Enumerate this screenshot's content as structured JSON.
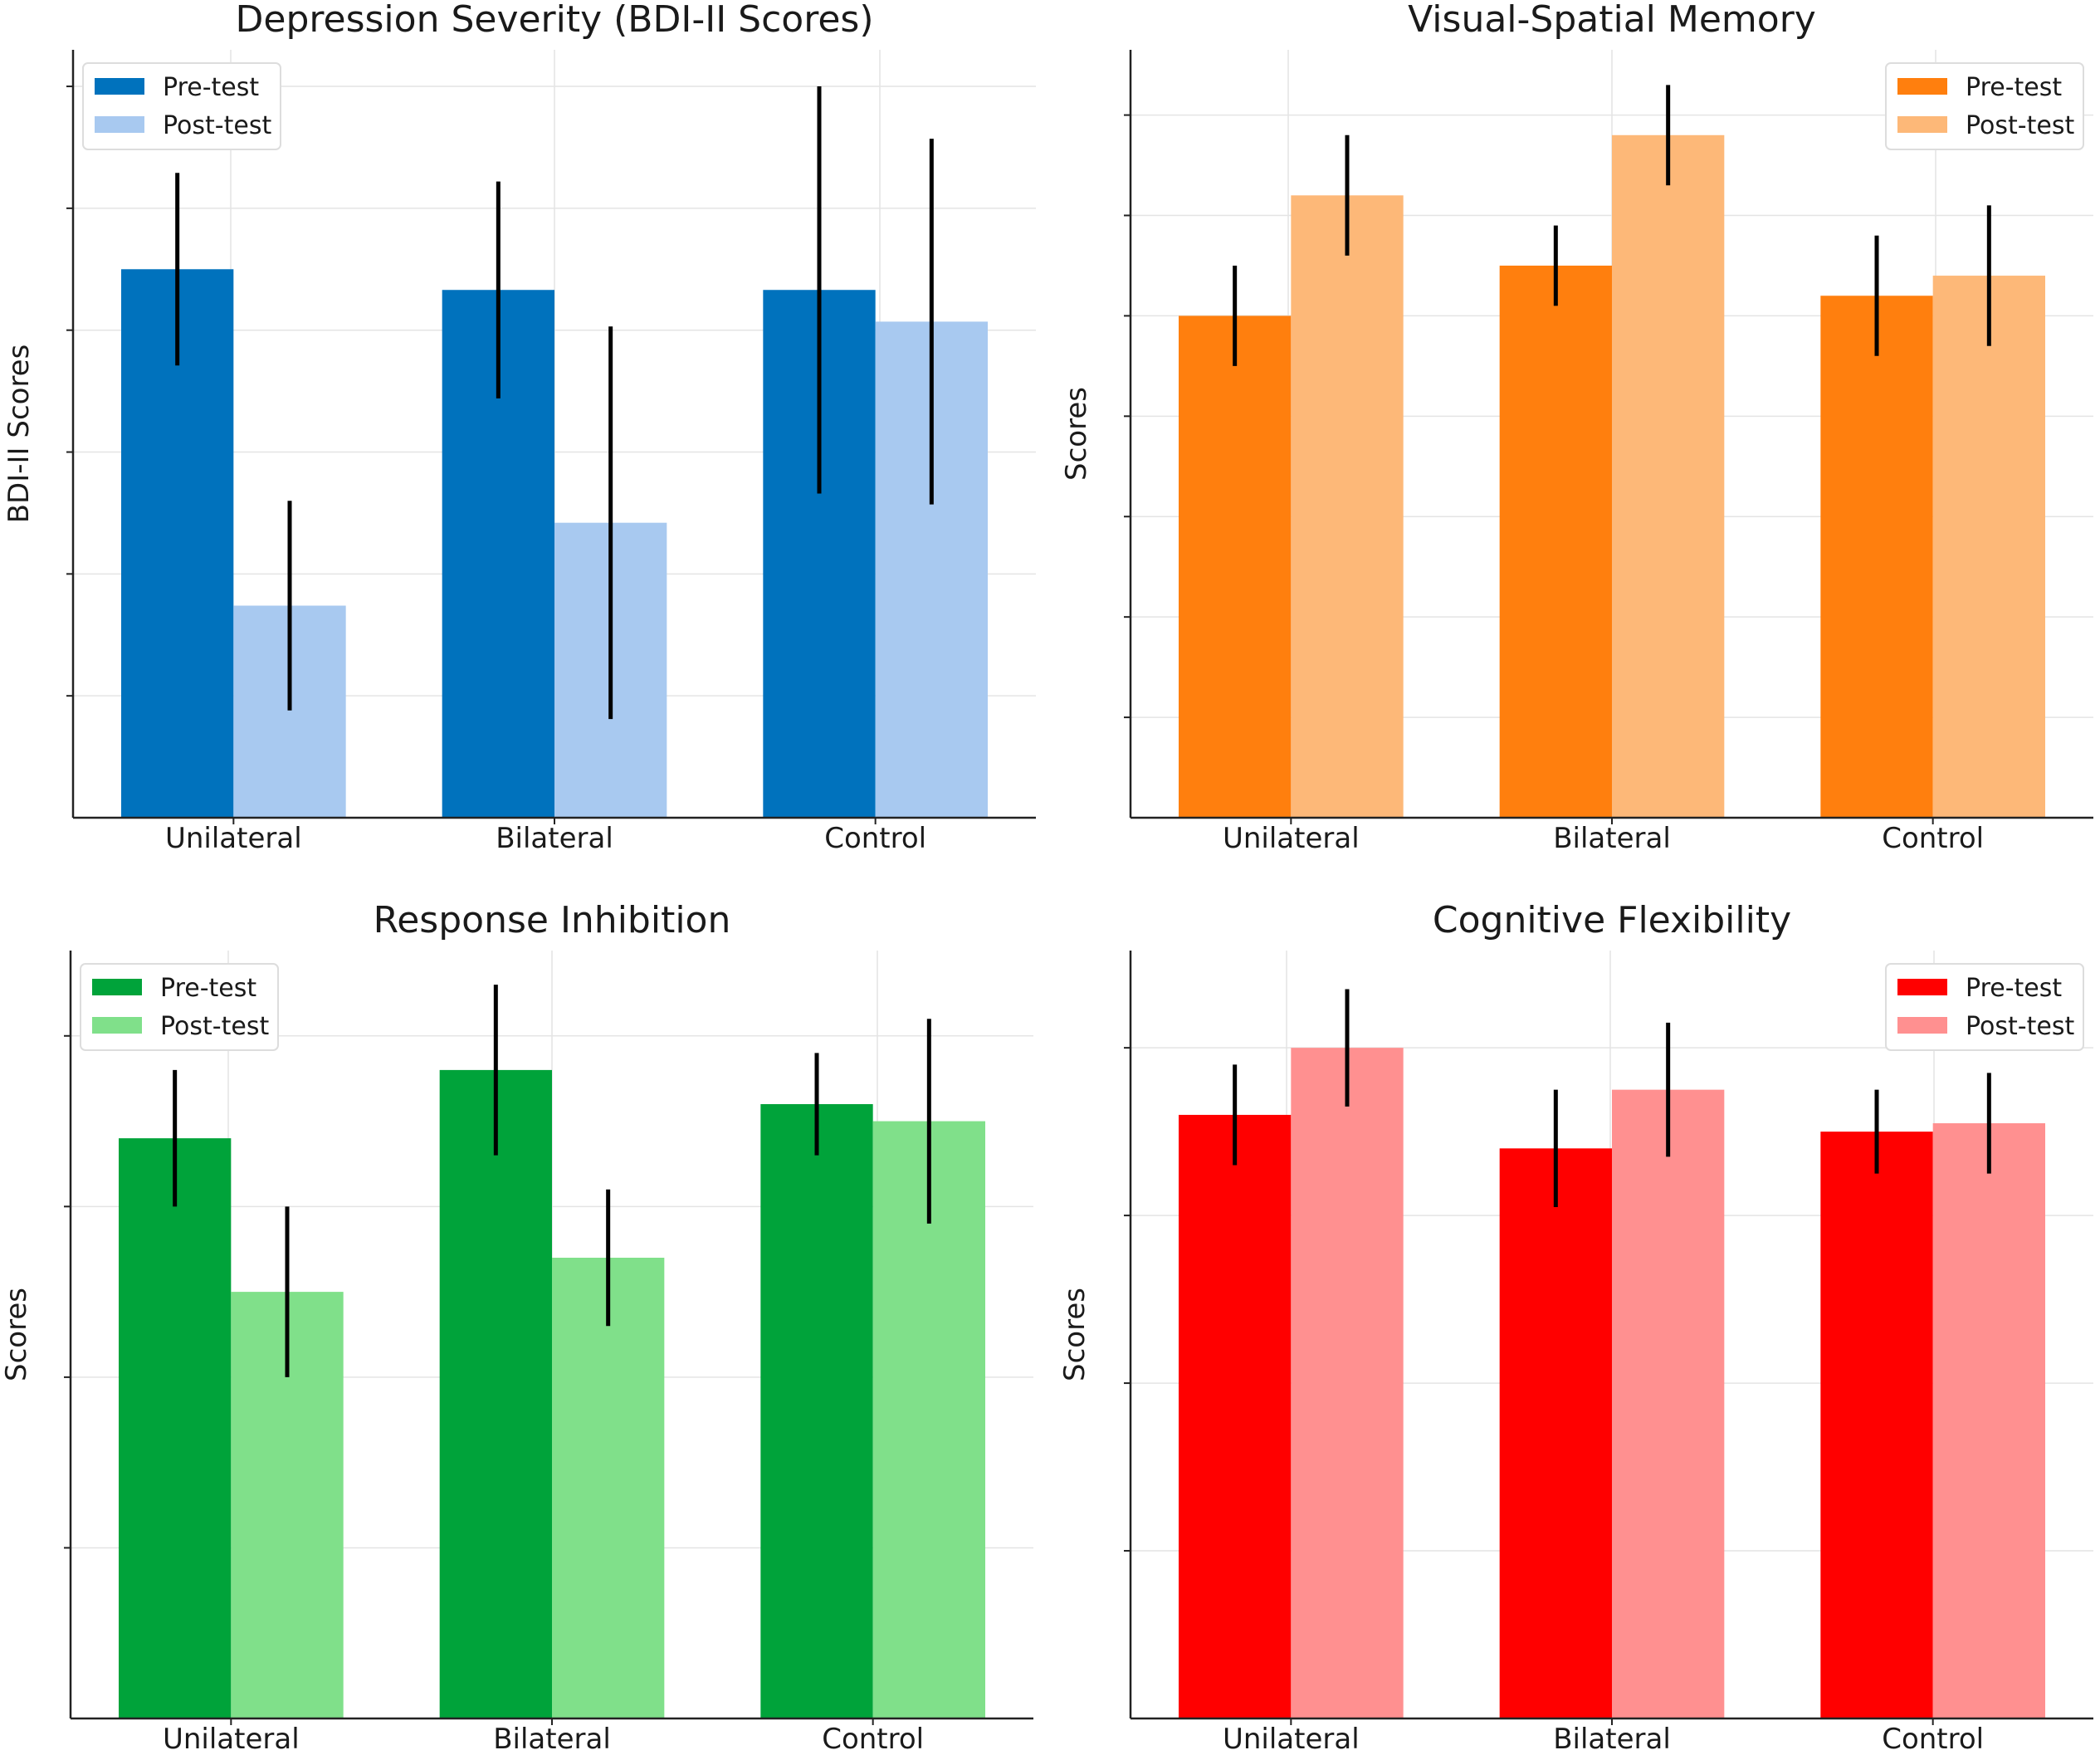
{
  "chart_data": [
    {
      "type": "bar",
      "title": "Depression Severity (BDI-II Scores)",
      "xlabel": "",
      "ylabel": "BDI-II Scores",
      "categories": [
        "Unilateral",
        "Bilateral",
        "Control"
      ],
      "ylim": [
        0,
        6.3
      ],
      "grid": true,
      "legend_position": "top-left",
      "series": [
        {
          "name": "Pre-test",
          "color": "#0072bd",
          "values": [
            4.5,
            4.33,
            4.33
          ],
          "errors": [
            0.79,
            0.89,
            1.67
          ]
        },
        {
          "name": "Post-test",
          "color": "#a8c9f0",
          "values": [
            1.74,
            2.42,
            4.07
          ],
          "errors": [
            0.86,
            1.61,
            1.5
          ]
        }
      ]
    },
    {
      "type": "bar",
      "title": "Visual-Spatial Memory",
      "xlabel": "",
      "ylabel": "Scores",
      "categories": [
        "Unilateral",
        "Bilateral",
        "Control"
      ],
      "ylim": [
        0,
        7.65
      ],
      "grid": true,
      "legend_position": "top-right",
      "series": [
        {
          "name": "Pre-test",
          "color": "#ff7f0e",
          "values": [
            5.0,
            5.5,
            5.2
          ],
          "errors": [
            0.5,
            0.4,
            0.6
          ]
        },
        {
          "name": "Post-test",
          "color": "#fdb878",
          "values": [
            6.2,
            6.8,
            5.4
          ],
          "errors": [
            0.6,
            0.5,
            0.7
          ]
        }
      ]
    },
    {
      "type": "bar",
      "title": "Response Inhibition",
      "xlabel": "",
      "ylabel": "Scores",
      "categories": [
        "Unilateral",
        "Bilateral",
        "Control"
      ],
      "ylim": [
        0,
        4.5
      ],
      "grid": true,
      "legend_position": "top-left",
      "series": [
        {
          "name": "Pre-test",
          "color": "#00a33a",
          "values": [
            3.4,
            3.8,
            3.6
          ],
          "errors": [
            0.4,
            0.5,
            0.3
          ]
        },
        {
          "name": "Post-test",
          "color": "#80e08a",
          "values": [
            2.5,
            2.7,
            3.5
          ],
          "errors": [
            0.5,
            0.4,
            0.6
          ]
        }
      ]
    },
    {
      "type": "bar",
      "title": "Cognitive Flexibility",
      "xlabel": "",
      "ylabel": "Scores",
      "categories": [
        "Unilateral",
        "Bilateral",
        "Control"
      ],
      "ylim": [
        0,
        4.58
      ],
      "grid": true,
      "legend_position": "top-right",
      "series": [
        {
          "name": "Pre-test",
          "color": "#ff0000",
          "values": [
            3.6,
            3.4,
            3.5
          ],
          "errors": [
            0.3,
            0.35,
            0.25
          ]
        },
        {
          "name": "Post-test",
          "color": "#ff9090",
          "values": [
            4.0,
            3.75,
            3.55
          ],
          "errors": [
            0.35,
            0.4,
            0.3
          ]
        }
      ]
    }
  ]
}
